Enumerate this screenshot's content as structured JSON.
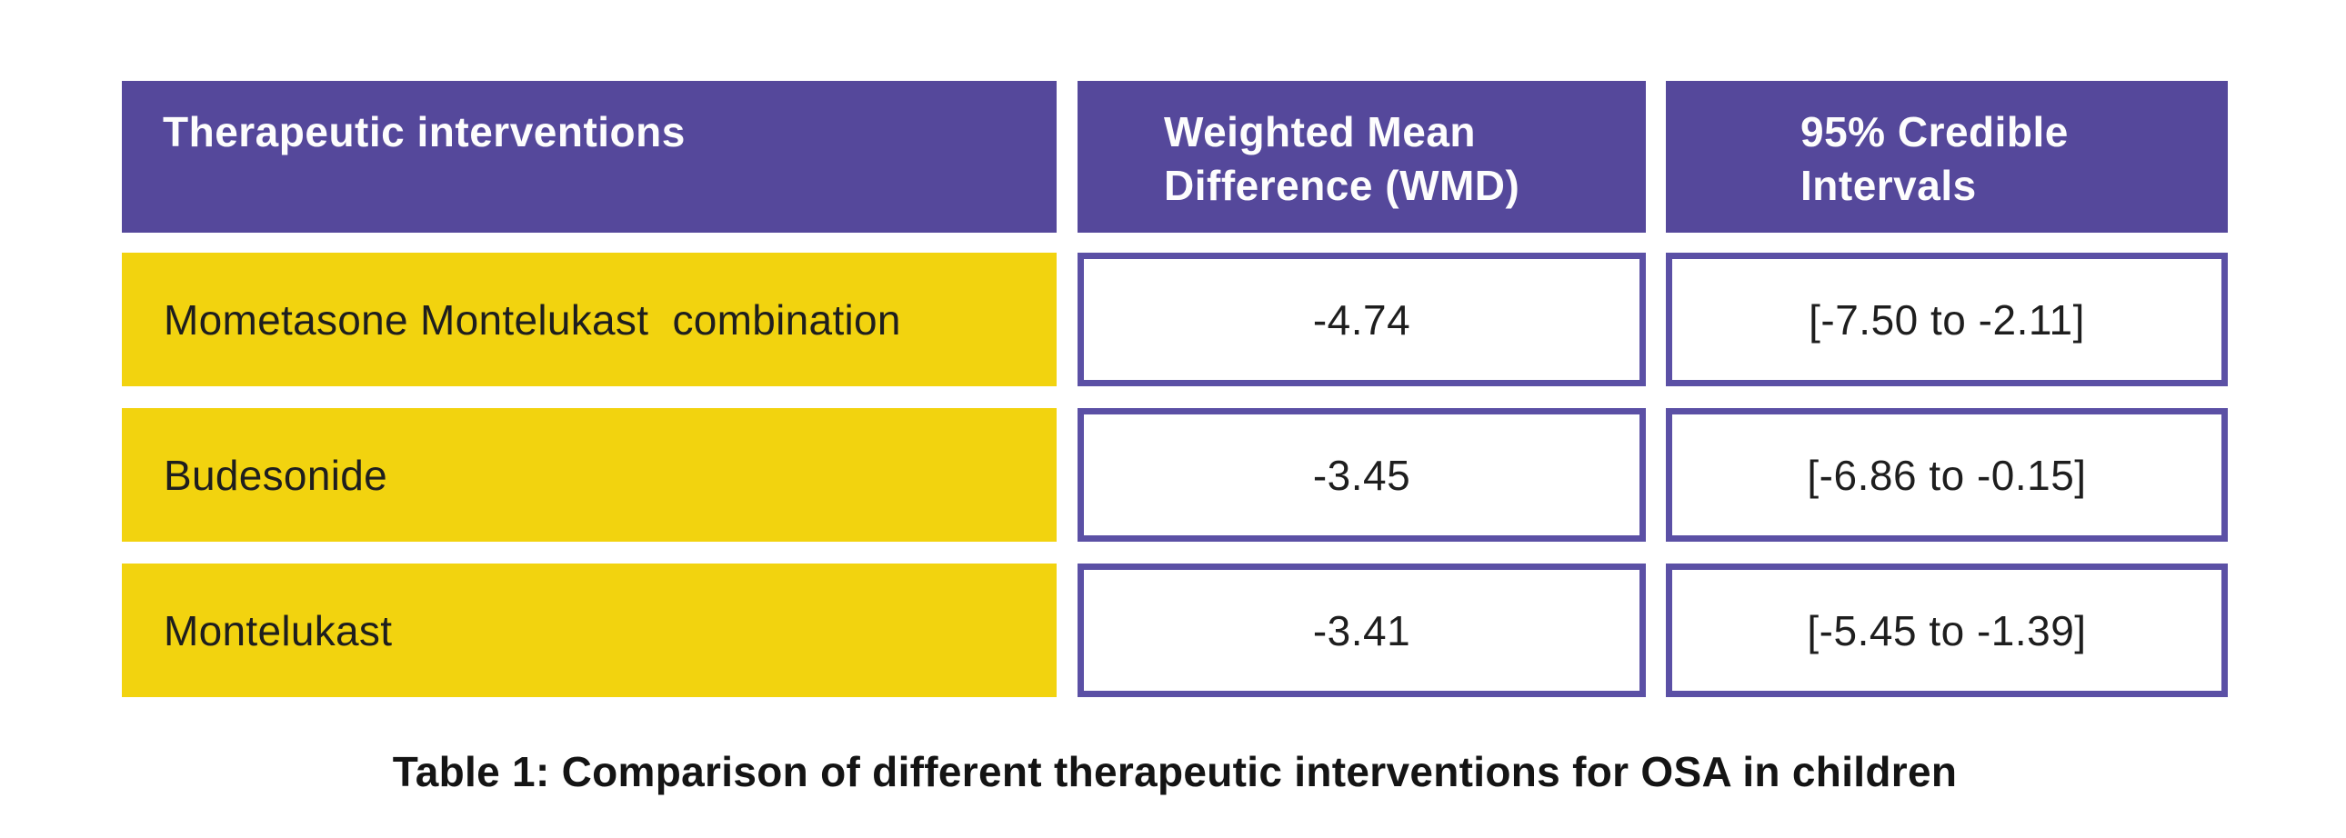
{
  "colors": {
    "header_purple": "#55489B",
    "cell_border_purple": "#5B50A5",
    "row_yellow": "#F2D30F",
    "header_text": "#FDFDFD",
    "body_text": "#1E1E1E",
    "background": "#FFFFFF"
  },
  "table": {
    "headers": [
      {
        "lines": [
          "Therapeutic interventions"
        ]
      },
      {
        "lines": [
          "Weighted Mean",
          "Difference (WMD)"
        ]
      },
      {
        "lines": [
          "95% Credible",
          "Intervals"
        ]
      }
    ],
    "rows": [
      {
        "intervention": "Mometasone Montelukast  combination",
        "wmd": "-4.74",
        "ci": "[-7.50 to -2.11]"
      },
      {
        "intervention": "Budesonide",
        "wmd": "-3.45",
        "ci": "[-6.86 to -0.15]"
      },
      {
        "intervention": "Montelukast",
        "wmd": "-3.41",
        "ci": "[-5.45 to -1.39]"
      }
    ],
    "caption": "Table 1: Comparison of different therapeutic interventions for OSA in children"
  },
  "chart_data": {
    "type": "table",
    "title": "Table 1: Comparison of different therapeutic interventions for OSA in children",
    "columns": [
      "Therapeutic interventions",
      "Weighted Mean Difference (WMD)",
      "95% Credible Intervals"
    ],
    "categories": [
      "Mometasone Montelukast  combination",
      "Budesonide",
      "Montelukast"
    ],
    "series": [
      {
        "name": "Weighted Mean Difference (WMD)",
        "values": [
          -4.74,
          -3.45,
          -3.41
        ]
      },
      {
        "name": "95% Credible Interval lower bound",
        "values": [
          -7.5,
          -6.86,
          -5.45
        ]
      },
      {
        "name": "95% Credible Interval upper bound",
        "values": [
          -2.11,
          -0.15,
          -1.39
        ]
      }
    ],
    "cells": [
      [
        "Mometasone Montelukast  combination",
        "-4.74",
        "[-7.50 to -2.11]"
      ],
      [
        "Budesonide",
        "-3.45",
        "[-6.86 to -0.15]"
      ],
      [
        "Montelukast",
        "-3.41",
        "[-5.45 to -1.39]"
      ]
    ]
  }
}
